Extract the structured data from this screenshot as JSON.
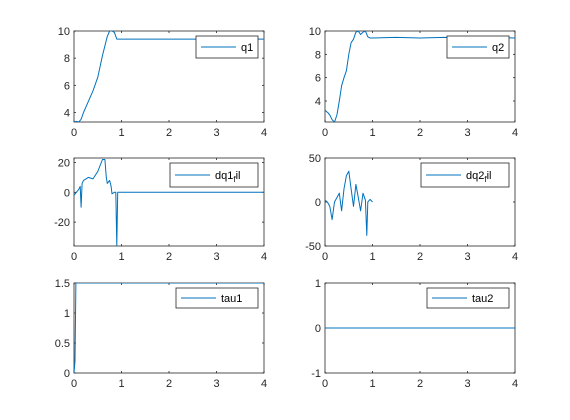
{
  "chart_data": [
    {
      "type": "line",
      "xlim": [
        0,
        4
      ],
      "ylim": [
        3.3,
        10
      ],
      "xticks": [
        0,
        1,
        2,
        3,
        4
      ],
      "yticks": [
        4,
        6,
        8,
        10
      ],
      "legend": "q1",
      "legend_position": "top-right",
      "color": "#0072BD",
      "grid": false,
      "series": [
        {
          "x": [
            0,
            0.05,
            0.1,
            0.15,
            0.2,
            0.3,
            0.4,
            0.5,
            0.6,
            0.7,
            0.75,
            0.8,
            0.85,
            0.9,
            1.0,
            4.0
          ],
          "y": [
            3.3,
            3.35,
            3.3,
            3.5,
            4.0,
            4.8,
            5.6,
            6.6,
            8.2,
            9.6,
            10,
            10,
            9.9,
            9.4,
            9.4,
            9.4
          ]
        }
      ]
    },
    {
      "type": "line",
      "xlim": [
        0,
        4
      ],
      "ylim": [
        2.2,
        10
      ],
      "xticks": [
        0,
        1,
        2,
        3,
        4
      ],
      "yticks": [
        4,
        6,
        8,
        10
      ],
      "legend": "q2",
      "legend_position": "top-right",
      "color": "#0072BD",
      "grid": false,
      "series": [
        {
          "x": [
            0,
            0.03,
            0.06,
            0.1,
            0.15,
            0.2,
            0.25,
            0.3,
            0.35,
            0.4,
            0.45,
            0.5,
            0.55,
            0.6,
            0.65,
            0.7,
            0.75,
            0.8,
            0.85,
            0.9,
            0.95,
            1.0,
            1.5,
            2.0,
            2.5,
            3.0,
            3.5,
            4.0
          ],
          "y": [
            3.2,
            3.1,
            3.0,
            2.8,
            2.4,
            2.2,
            2.8,
            4.0,
            5.3,
            6.0,
            6.6,
            8.0,
            9.0,
            9.3,
            9.9,
            10,
            9.7,
            9.9,
            10,
            9.5,
            9.4,
            9.4,
            9.45,
            9.4,
            9.45,
            9.4,
            9.45,
            9.4
          ]
        }
      ]
    },
    {
      "type": "line",
      "xlim": [
        0,
        4
      ],
      "ylim": [
        -36,
        23
      ],
      "xticks": [
        0,
        1,
        2,
        3,
        4
      ],
      "yticks": [
        -20,
        0,
        20
      ],
      "legend": "dq1_fil",
      "legend_position": "top-right",
      "color": "#0072BD",
      "grid": false,
      "series": [
        {
          "x": [
            0,
            0.05,
            0.1,
            0.13,
            0.15,
            0.17,
            0.2,
            0.3,
            0.4,
            0.5,
            0.55,
            0.6,
            0.65,
            0.68,
            0.7,
            0.75,
            0.78,
            0.8,
            0.85,
            0.88,
            0.9,
            0.92,
            0.95,
            1.0,
            4.0
          ],
          "y": [
            -2,
            0,
            2,
            4,
            -10,
            6,
            8,
            10,
            9,
            14,
            18,
            22,
            22,
            10,
            6,
            8,
            4,
            -1,
            0,
            0,
            -36,
            0,
            0,
            0,
            0
          ]
        }
      ]
    },
    {
      "type": "line",
      "xlim": [
        0,
        4
      ],
      "ylim": [
        -50,
        50
      ],
      "xticks": [
        0,
        1,
        2,
        3,
        4
      ],
      "yticks": [
        -50,
        0,
        50
      ],
      "legend": "dq2_fil",
      "legend_position": "top-right",
      "color": "#0072BD",
      "grid": false,
      "series": [
        {
          "x": [
            0,
            0.05,
            0.1,
            0.15,
            0.2,
            0.25,
            0.3,
            0.35,
            0.4,
            0.45,
            0.5,
            0.55,
            0.6,
            0.65,
            0.7,
            0.75,
            0.8,
            0.85,
            0.88,
            0.9,
            0.95,
            1.0
          ],
          "y": [
            2,
            0,
            -5,
            -20,
            0,
            5,
            10,
            -10,
            15,
            30,
            35,
            15,
            -5,
            20,
            5,
            -10,
            10,
            2,
            -38,
            0,
            3,
            0
          ]
        }
      ]
    },
    {
      "type": "line",
      "xlim": [
        0,
        4
      ],
      "ylim": [
        0,
        1.5
      ],
      "xticks": [
        0,
        1,
        2,
        3,
        4
      ],
      "yticks": [
        0,
        0.5,
        1,
        1.5
      ],
      "legend": "tau1",
      "legend_position": "top-right",
      "color": "#0072BD",
      "grid": false,
      "series": [
        {
          "x": [
            0,
            0.02,
            0.04,
            4.0
          ],
          "y": [
            0,
            0.2,
            1.5,
            1.5
          ]
        }
      ]
    },
    {
      "type": "line",
      "xlim": [
        0,
        4
      ],
      "ylim": [
        -1,
        1
      ],
      "xticks": [
        0,
        1,
        2,
        3,
        4
      ],
      "yticks": [
        -1,
        0,
        1
      ],
      "legend": "tau2",
      "legend_position": "top-right",
      "color": "#0072BD",
      "grid": false,
      "series": [
        {
          "x": [
            0,
            4.0
          ],
          "y": [
            0,
            0
          ]
        }
      ]
    }
  ]
}
